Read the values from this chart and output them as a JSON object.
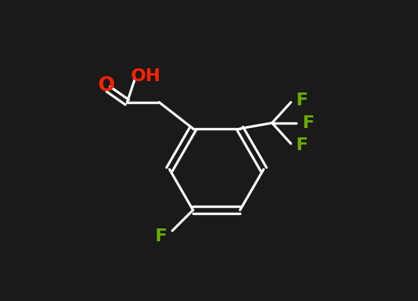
{
  "background_color": "#1a1a1a",
  "bond_color": "#ffffff",
  "bond_width": 2.5,
  "atom_colors": {
    "O": "#ff2200",
    "OH": "#ff2200",
    "F": "#6aaa00",
    "C": "#ffffff"
  },
  "font_size_atoms": 18,
  "font_size_labels": 16
}
